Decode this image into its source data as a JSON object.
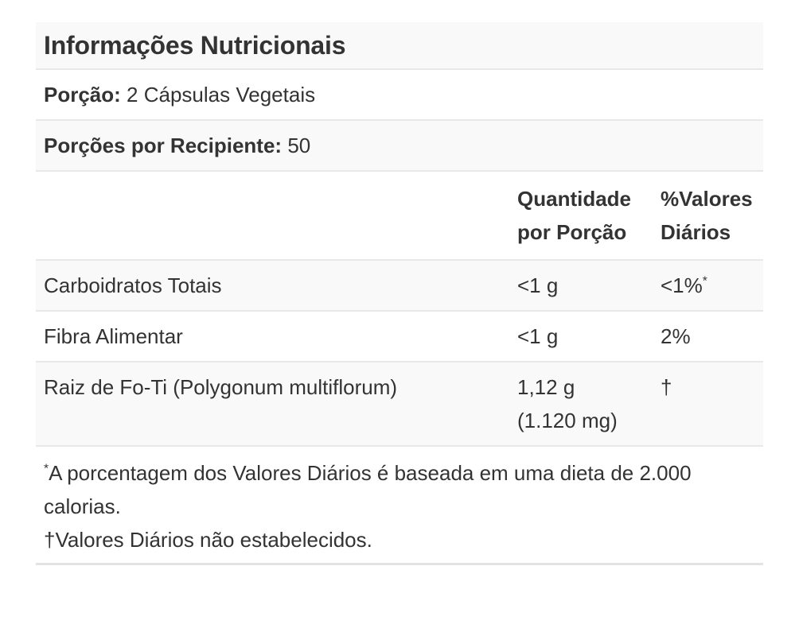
{
  "title": "Informações Nutricionais",
  "serving": {
    "label": "Porção:",
    "value": "2 Cápsulas Vegetais"
  },
  "servings_per_container": {
    "label": "Porções por Recipiente:",
    "value": "50"
  },
  "table": {
    "headers": {
      "amount": "Quantidade por Porção",
      "daily_value": "%Valores Diários"
    },
    "rows": [
      {
        "name": "Carboidratos Totais",
        "amount": "<1 g",
        "amount2": "",
        "dv": "<1%",
        "dv_mark": "*"
      },
      {
        "name": "Fibra Alimentar",
        "amount": "<1 g",
        "amount2": "",
        "dv": "2%",
        "dv_mark": ""
      },
      {
        "name": "Raiz de Fo-Ti (Polygonum multiflorum)",
        "amount": "1,12 g",
        "amount2": "(1.120 mg)",
        "dv": "†",
        "dv_mark": ""
      }
    ]
  },
  "footnotes": {
    "asterisk_mark": "*",
    "asterisk_text": "A porcentagem dos Valores Diários é baseada em uma dieta de 2.000 calorias.",
    "dagger_text": "†Valores Diários não estabelecidos."
  },
  "colors": {
    "text": "#333333",
    "divider": "#e8e8e8",
    "bottom_rule": "#e3e3e3",
    "row_shade": "#f9f9f9",
    "background": "#ffffff"
  }
}
